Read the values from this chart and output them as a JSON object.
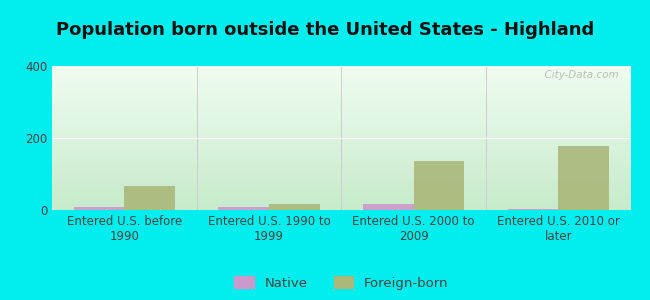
{
  "title": "Population born outside the United States - Highland",
  "categories": [
    "Entered U.S. before\n1990",
    "Entered U.S. 1990 to\n1999",
    "Entered U.S. 2000 to\n2009",
    "Entered U.S. 2010 or\nlater"
  ],
  "native_values": [
    7,
    7,
    18,
    2
  ],
  "foreign_values": [
    68,
    18,
    135,
    178
  ],
  "native_color": "#cc99cc",
  "foreign_color": "#aab87a",
  "ylim": [
    0,
    400
  ],
  "yticks": [
    0,
    200,
    400
  ],
  "outer_background": "#00eeee",
  "bar_width": 0.35,
  "title_fontsize": 13,
  "tick_fontsize": 8.5,
  "legend_fontsize": 9.5,
  "watermark": "  City-Data.com"
}
